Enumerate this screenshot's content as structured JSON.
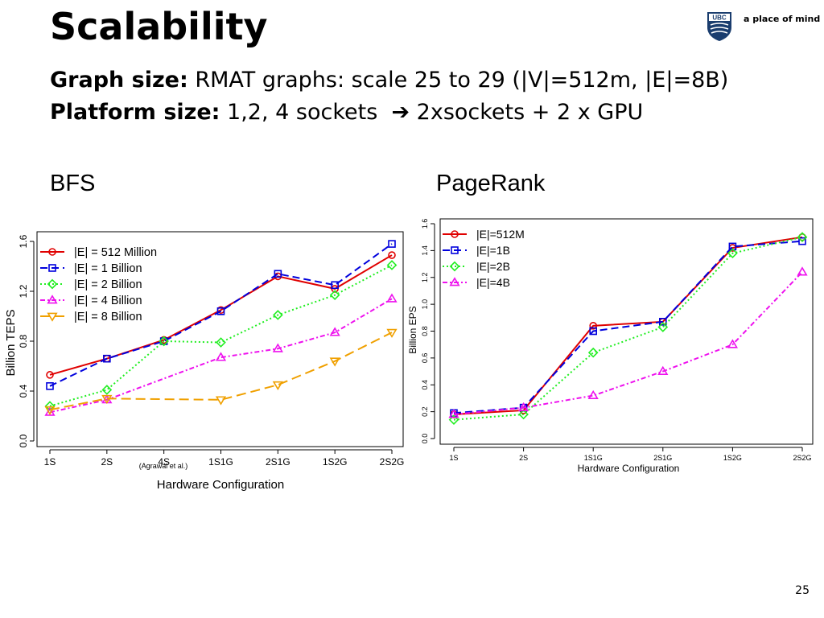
{
  "slide": {
    "title": "Scalability",
    "line1_bold": "Graph size:",
    "line1_text": " RMAT graphs: scale 25 to 29 (|V|=512m, |E|=8B)",
    "line2_bold": "Platform size:",
    "line2_text": " 1,2, 4 sockets",
    "line2_after": "2xsockets + 2 x GPU",
    "arrow_icon": "right-arrow-icon",
    "logo_text": "UBC",
    "tagline": "a place of mind",
    "page_number": "25"
  },
  "chart_data": [
    {
      "type": "line",
      "label": "BFS",
      "xlabel": "Hardware Configuration",
      "ylabel": "Billion TEPS",
      "annotation": "(Agrawal et al.)",
      "categories": [
        "1S",
        "2S",
        "4S",
        "1S1G",
        "2S1G",
        "1S2G",
        "2S2G"
      ],
      "ylim": [
        0,
        1.6
      ],
      "yticks": [
        "0.0",
        "0.4",
        "0.8",
        "1.2",
        "1.6"
      ],
      "legend_position": "top-left",
      "series": [
        {
          "name": "|E| = 512 Million",
          "values": [
            0.53,
            0.66,
            0.81,
            1.05,
            1.32,
            1.22,
            1.49
          ],
          "color": "#e00000",
          "dash": "solid",
          "marker": "circle"
        },
        {
          "name": "|E| = 1 Billion",
          "values": [
            0.44,
            0.66,
            0.8,
            1.04,
            1.34,
            1.25,
            1.58
          ],
          "color": "#0000dd",
          "dash": "long",
          "marker": "square"
        },
        {
          "name": "|E| = 2 Billion",
          "values": [
            0.28,
            0.41,
            0.8,
            0.79,
            1.01,
            1.17,
            1.41
          ],
          "color": "#22ee22",
          "dash": "dot",
          "marker": "diamond"
        },
        {
          "name": "|E| = 4 Billion",
          "values": [
            0.23,
            0.33,
            null,
            0.67,
            0.74,
            0.87,
            1.14
          ],
          "color": "#ee11ee",
          "dash": "dashdot",
          "marker": "triangle-up"
        },
        {
          "name": "|E| = 8 Billion",
          "values": [
            0.25,
            0.34,
            null,
            0.33,
            0.45,
            0.64,
            0.87
          ],
          "color": "#f0a000",
          "dash": "longdash",
          "marker": "triangle-down"
        }
      ]
    },
    {
      "type": "line",
      "label": "PageRank",
      "xlabel": "Hardware Configuration",
      "ylabel": "Billion EPS",
      "categories": [
        "1S",
        "2S",
        "1S1G",
        "2S1G",
        "1S2G",
        "2S2G"
      ],
      "ylim": [
        0,
        1.6
      ],
      "yticks": [
        "0.0",
        "0.2",
        "0.4",
        "0.6",
        "0.8",
        "1.0",
        "1.2",
        "1.4",
        "1.6"
      ],
      "legend_position": "top-left",
      "series": [
        {
          "name": "|E|=512M",
          "values": [
            0.18,
            0.21,
            0.84,
            0.87,
            1.42,
            1.5
          ],
          "color": "#e00000",
          "dash": "solid",
          "marker": "circle"
        },
        {
          "name": "|E|=1B",
          "values": [
            0.19,
            0.23,
            0.8,
            0.87,
            1.43,
            1.47
          ],
          "color": "#0000dd",
          "dash": "long",
          "marker": "square"
        },
        {
          "name": "|E|=2B",
          "values": [
            0.14,
            0.18,
            0.64,
            0.83,
            1.38,
            1.5
          ],
          "color": "#22ee22",
          "dash": "dot",
          "marker": "diamond"
        },
        {
          "name": "|E|=4B",
          "values": [
            0.18,
            0.23,
            0.32,
            0.5,
            0.7,
            1.24
          ],
          "color": "#ee11ee",
          "dash": "dashdot",
          "marker": "triangle-up"
        }
      ]
    }
  ]
}
